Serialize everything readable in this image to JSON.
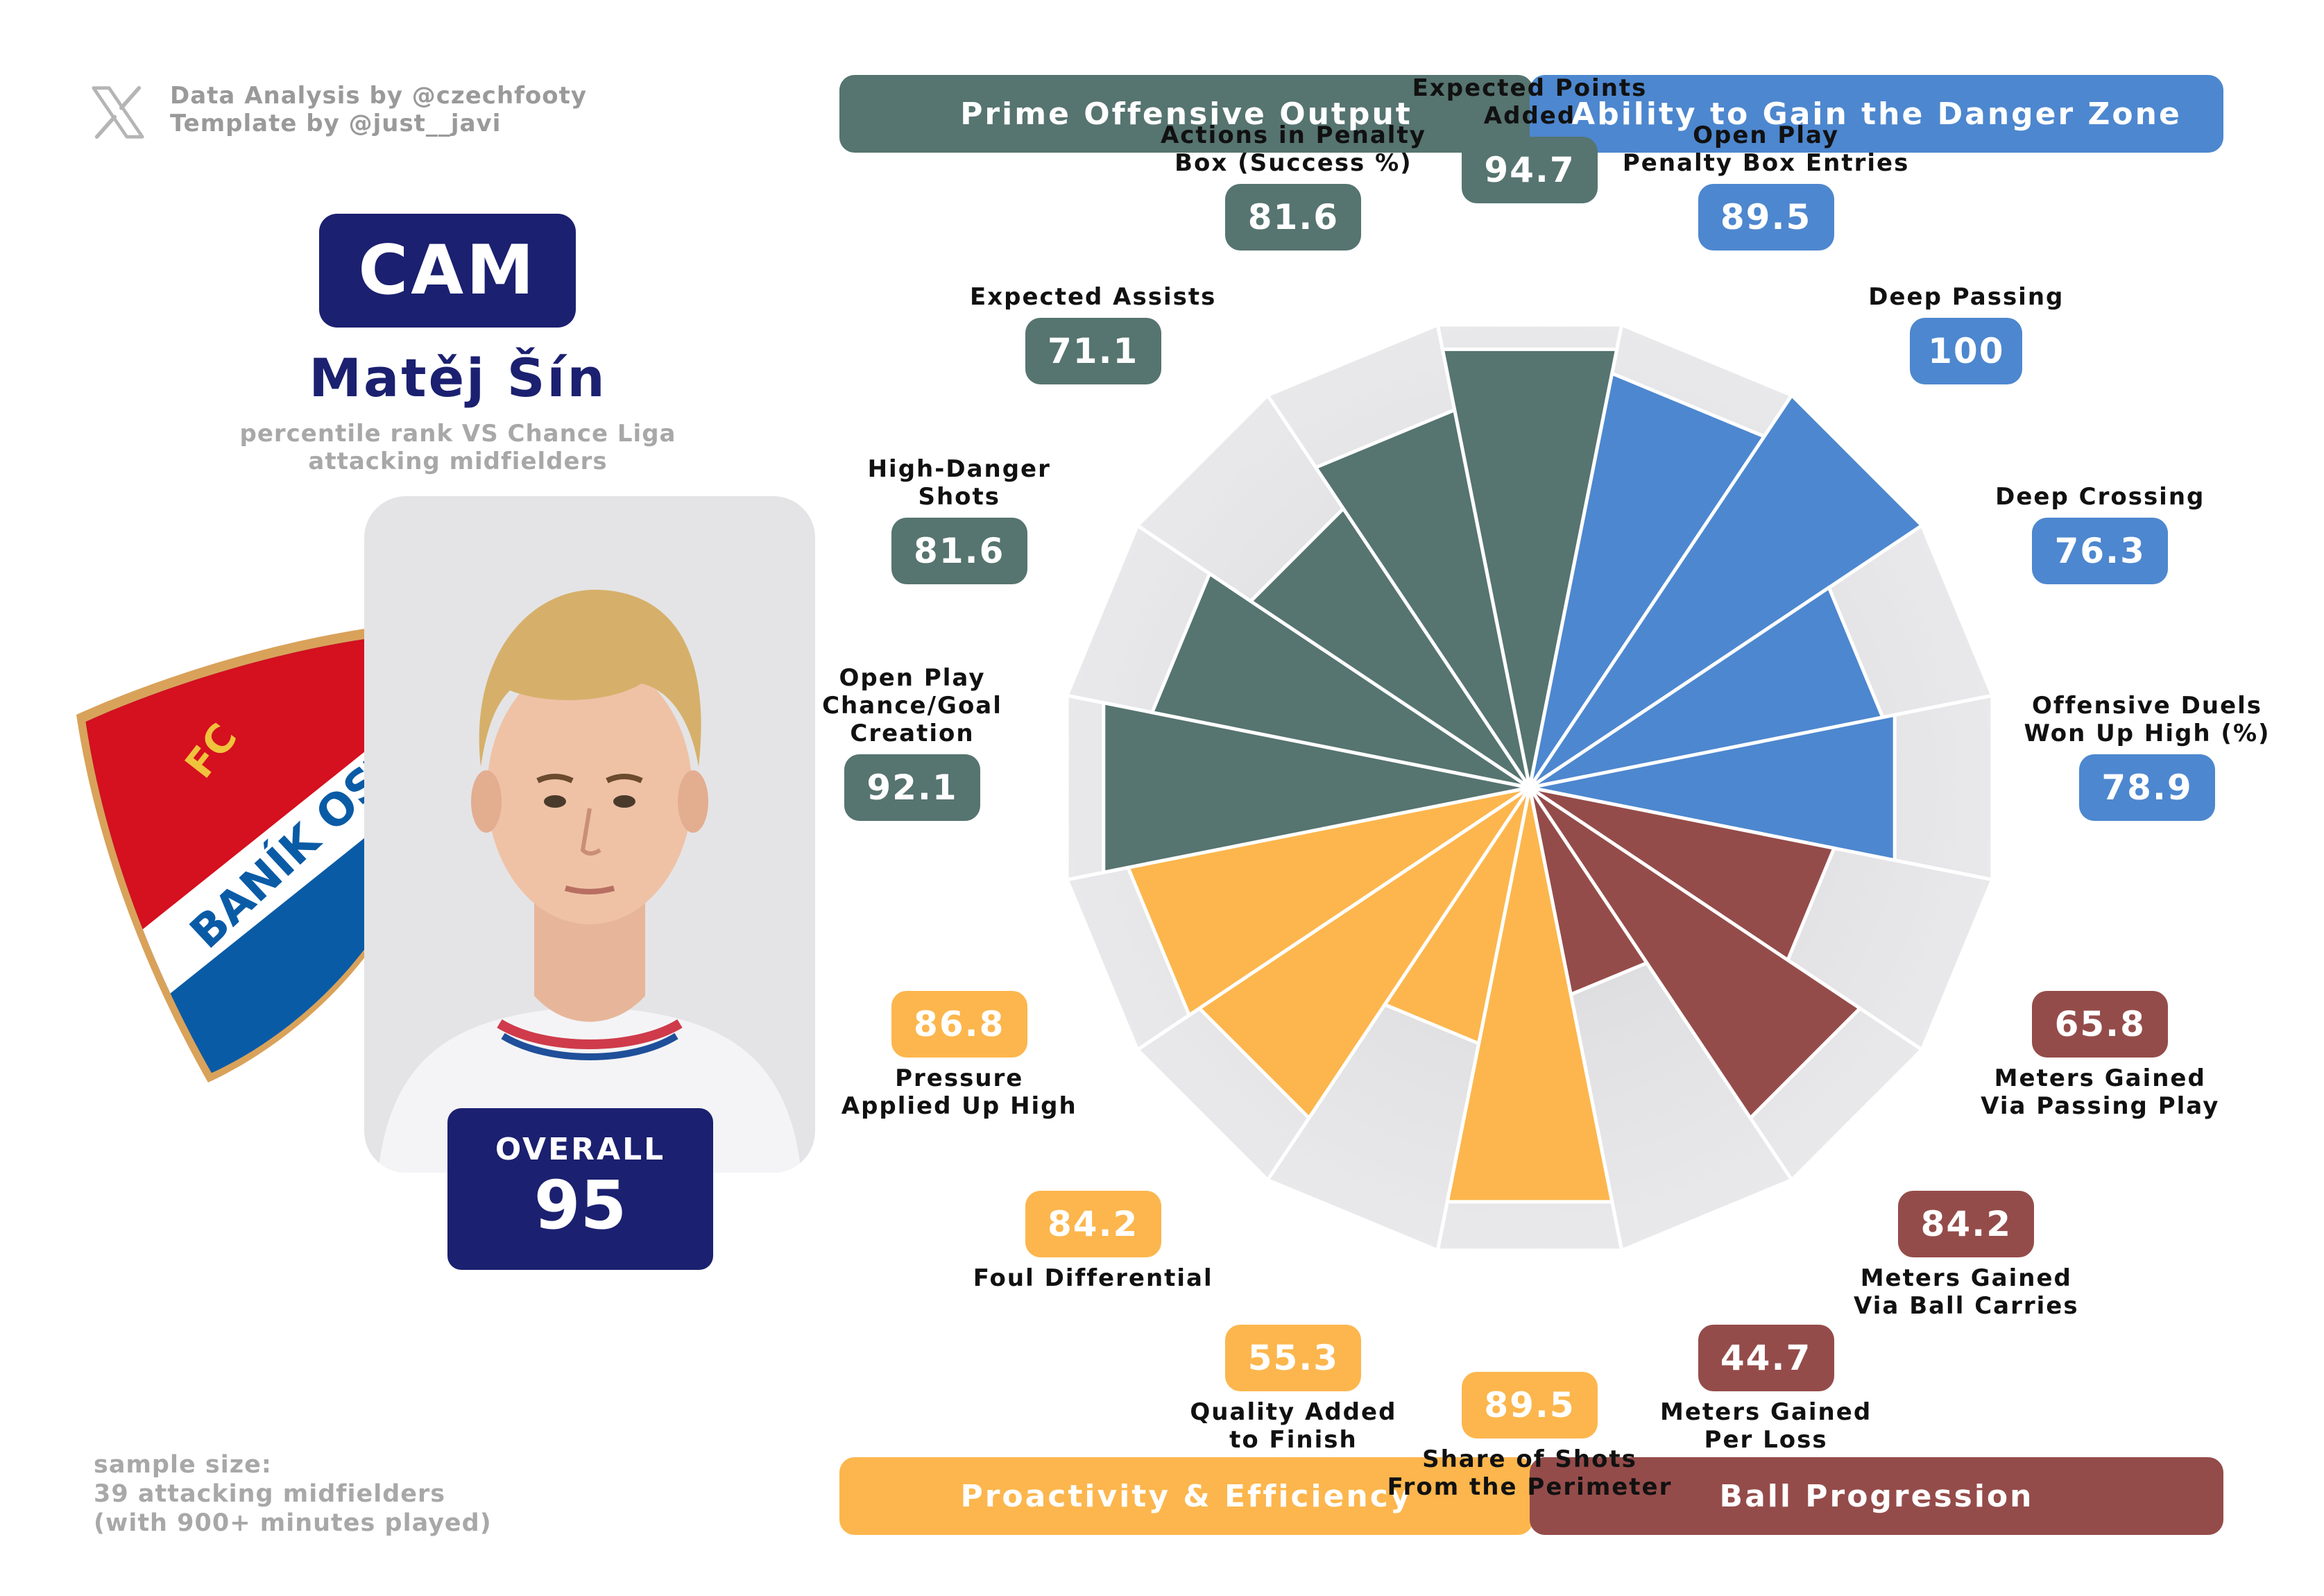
{
  "credits": {
    "line1": "Data Analysis by @czechfooty",
    "line2": "Template by @just__javi"
  },
  "player": {
    "position": "CAM",
    "name": "Matěj Šín",
    "subtitle_1": "percentile rank VS Chance Liga",
    "subtitle_2": "attacking midfielders",
    "overall_label": "OVERALL",
    "overall_value": "95",
    "club_badge_text": {
      "top": "FC",
      "band": "BANÍK OSTRAVA"
    }
  },
  "sample": {
    "line1": "sample size:",
    "line2": "39 attacking midfielders",
    "line3": "(with 900+ minutes played)"
  },
  "categories": [
    {
      "label": "Prime Offensive Output",
      "color": "#567470"
    },
    {
      "label": "Ability to Gain the Danger Zone",
      "color": "#4d87cf"
    },
    {
      "label": "Proactivity & Efficiency",
      "color": "#fcb64d"
    },
    {
      "label": "Ball Progression",
      "color": "#944c4a"
    }
  ],
  "chart_data": {
    "type": "polar-bar",
    "range": [
      0,
      100
    ],
    "metrics": [
      {
        "label_lines": [
          "Expected Points",
          "Added"
        ],
        "value": 94.7,
        "category": 0
      },
      {
        "label_lines": [
          "Open Play",
          "Penalty Box Entries"
        ],
        "value": 89.5,
        "category": 1
      },
      {
        "label_lines": [
          "Deep Passing"
        ],
        "value": 100,
        "category": 1
      },
      {
        "label_lines": [
          "Deep Crossing"
        ],
        "value": 76.3,
        "category": 1
      },
      {
        "label_lines": [
          "Offensive Duels",
          "Won Up High (%)"
        ],
        "value": 78.9,
        "category": 1
      },
      {
        "label_lines": [
          "Meters Gained",
          "Via Passing Play"
        ],
        "value": 65.8,
        "category": 3
      },
      {
        "label_lines": [
          "Meters Gained",
          "Via Ball Carries"
        ],
        "value": 84.2,
        "category": 3
      },
      {
        "label_lines": [
          "Meters Gained",
          "Per Loss"
        ],
        "value": 44.7,
        "category": 3
      },
      {
        "label_lines": [
          "Share of Shots",
          "From the Perimeter"
        ],
        "value": 89.5,
        "category": 2
      },
      {
        "label_lines": [
          "Quality Added",
          "to Finish"
        ],
        "value": 55.3,
        "category": 2
      },
      {
        "label_lines": [
          "Foul Differential"
        ],
        "value": 84.2,
        "category": 2
      },
      {
        "label_lines": [
          "Pressure",
          "Applied Up High"
        ],
        "value": 86.8,
        "category": 2
      },
      {
        "label_lines": [
          "Open Play",
          "Chance/Goal",
          "Creation"
        ],
        "value": 92.1,
        "category": 0
      },
      {
        "label_lines": [
          "High-Danger",
          "Shots"
        ],
        "value": 81.6,
        "category": 0
      },
      {
        "label_lines": [
          "Expected Assists"
        ],
        "value": 71.1,
        "category": 0
      },
      {
        "label_lines": [
          "Actions in Penalty",
          "Box (Success %)"
        ],
        "value": 81.6,
        "category": 0
      }
    ]
  }
}
